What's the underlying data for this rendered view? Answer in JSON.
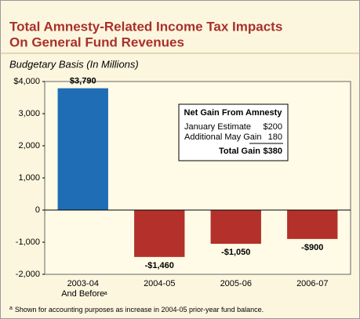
{
  "chart_data": {
    "type": "bar",
    "title": [
      "Total Amnesty-Related Income Tax Impacts",
      "On General Fund Revenues"
    ],
    "subtitle": "Budgetary Basis (In Millions)",
    "categories": [
      "2003-04 And Before",
      "2004-05",
      "2005-06",
      "2006-07"
    ],
    "category_markers": [
      "a",
      null,
      null,
      null
    ],
    "values": [
      3790,
      -1460,
      -1050,
      -900
    ],
    "value_labels": [
      "$3,790",
      "-$1,460",
      "-$1,050",
      "-$900"
    ],
    "colors": [
      "#1f6db5",
      "#b3312a",
      "#b3312a",
      "#b3312a"
    ],
    "ylim": [
      -2000,
      4000
    ],
    "yticks": [
      {
        "value": 4000,
        "label": "$4,000"
      },
      {
        "value": 3000,
        "label": "3,000"
      },
      {
        "value": 2000,
        "label": "2,000"
      },
      {
        "value": 1000,
        "label": "1,000"
      },
      0,
      {
        "value": -1000,
        "label": "-1,000"
      },
      {
        "value": -2000,
        "label": "-2,000"
      }
    ],
    "grid": false,
    "inset": {
      "title": "Net Gain From Amnesty",
      "rows": [
        {
          "label": "January Estimate",
          "value": "$200"
        },
        {
          "label": "Additional May Gain",
          "value": "180"
        }
      ],
      "total": {
        "label": "Total Gain",
        "value": "$380"
      }
    },
    "footnote": {
      "marker": "a",
      "text": "Shown for accounting purposes as increase in 2004-05 prior-year fund balance."
    }
  }
}
